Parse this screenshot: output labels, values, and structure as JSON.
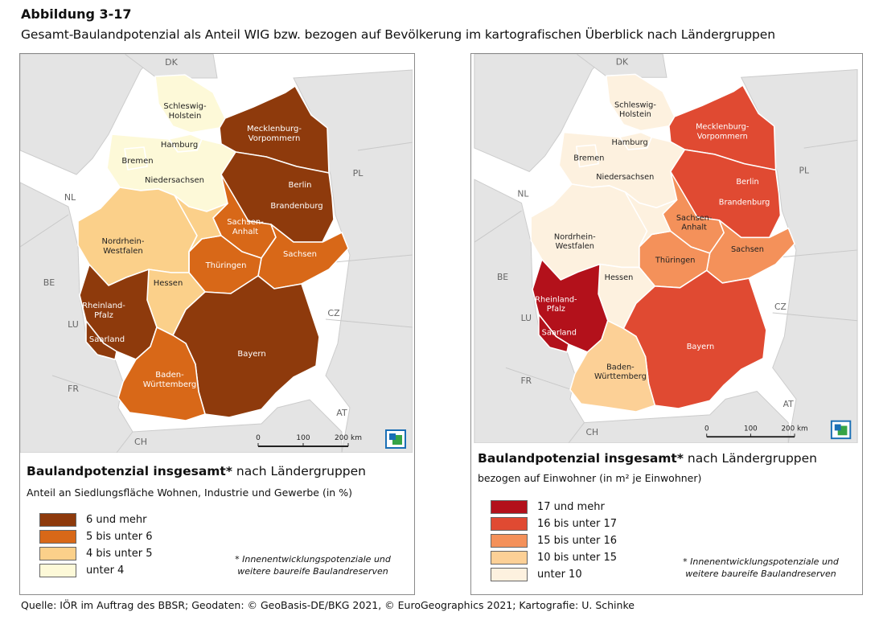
{
  "figure": {
    "label": "Abbildung 3-17",
    "caption": "Gesamt-Baulandpotenzial als Anteil WIG bzw. bezogen auf Bevölkerung im kartografischen Überblick nach Ländergruppen"
  },
  "countries": {
    "dk": "DK",
    "pl": "PL",
    "nl": "NL",
    "be": "BE",
    "lu": "LU",
    "cz": "CZ",
    "fr": "FR",
    "at": "AT",
    "ch": "CH"
  },
  "states": {
    "sh": "Schleswig-\nHolstein",
    "hh": "Hamburg",
    "mv": "Mecklenburg-\nVorpommern",
    "hb": "Bremen",
    "ni": "Niedersachsen",
    "be": "Berlin",
    "bb": "Brandenburg",
    "nw": "Nordrhein-\nWestfalen",
    "st": "Sachsen-\nAnhalt",
    "sn": "Sachsen",
    "th": "Thüringen",
    "he": "Hessen",
    "rp": "Rheinland-\nPfalz",
    "sl": "Saarland",
    "bw": "Baden-\nWürttemberg",
    "by": "Bayern"
  },
  "scalebar": {
    "t0": "0",
    "t1": "100",
    "t2": "200 km"
  },
  "maps": [
    {
      "legend_title_bold": "Baulandpotenzial insgesamt*",
      "legend_title_rest": " nach Ländergruppen",
      "legend_subtitle": "Anteil an Siedlungsfläche Wohnen, Industrie und Gewerbe (in %)",
      "classes": [
        {
          "label": "6 und mehr",
          "color": "#8e3a0c"
        },
        {
          "label": "5 bis unter 6",
          "color": "#d86818"
        },
        {
          "label": "4 bis unter 5",
          "color": "#fbd08a"
        },
        {
          "label": "unter 4",
          "color": "#fdf9d8"
        }
      ],
      "state_class": {
        "sh": 3,
        "hh": 3,
        "hb": 3,
        "ni": 3,
        "mv": 0,
        "be": 0,
        "bb": 0,
        "nw": 2,
        "he": 2,
        "st": 1,
        "th": 1,
        "sn": 1,
        "bw": 1,
        "rp": 0,
        "sl": 0,
        "by": 0
      },
      "note": "* Innenentwicklungspotenziale und\nweitere baureife Baulandreserven"
    },
    {
      "legend_title_bold": "Baulandpotenzial insgesamt*",
      "legend_title_rest": " nach Ländergruppen",
      "legend_subtitle": "bezogen auf Einwohner (in m² je Einwohner)",
      "classes": [
        {
          "label": "17 und mehr",
          "color": "#b3111b"
        },
        {
          "label": "16 bis unter 17",
          "color": "#e04a32"
        },
        {
          "label": "15 bis unter 16",
          "color": "#f4915a"
        },
        {
          "label": "10 bis unter 15",
          "color": "#fcd096"
        },
        {
          "label": "unter 10",
          "color": "#fdf1df"
        }
      ],
      "state_class": {
        "sh": 4,
        "hh": 4,
        "hb": 4,
        "ni": 4,
        "nw": 4,
        "he": 4,
        "mv": 1,
        "be": 1,
        "bb": 1,
        "by": 1,
        "st": 2,
        "th": 2,
        "sn": 2,
        "bw": 3,
        "rp": 0,
        "sl": 0
      },
      "note": "* Innenentwicklungspotenziale und\nweitere baureife Baulandreserven"
    }
  ],
  "source": "Quelle: IÖR im Auftrag des BBSR; Geodaten: © GeoBasis-DE/BKG 2021, © EuroGeographics 2021;  Kartografie: U. Schinke",
  "colors": {
    "background_land": "#e4e4e4",
    "sea": "#ffffff",
    "border": "#ffffff"
  },
  "icons": {
    "logo": "bbsr-logo-icon"
  }
}
